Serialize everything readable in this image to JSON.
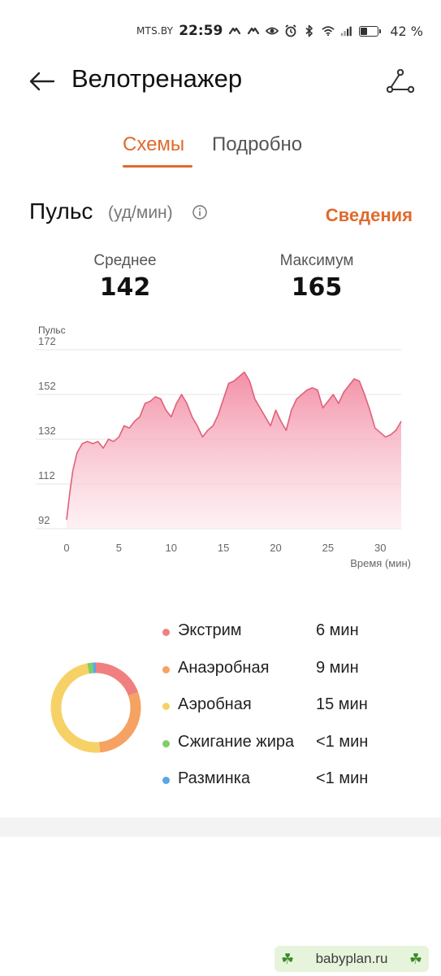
{
  "status_bar": {
    "carrier": "MTS.BY",
    "time": "22:59",
    "battery_percent_label": "42 %",
    "battery_level": 0.42,
    "icons": [
      "vibrate-icon",
      "vibrate-icon",
      "eye-icon",
      "alarm-icon",
      "bluetooth-icon",
      "wifi-icon",
      "signal-icon",
      "battery-icon"
    ]
  },
  "header": {
    "title": "Велотренажер",
    "back_icon": "arrow-left-icon",
    "route_icon": "route-icon"
  },
  "tabs": [
    {
      "label": "Схемы",
      "active": true
    },
    {
      "label": "Подробно",
      "active": false
    }
  ],
  "pulse": {
    "title": "Пульс",
    "unit": "(уд/мин)",
    "details_label": "Сведения",
    "average_label": "Среднее",
    "average_value": "142",
    "max_label": "Максимум",
    "max_value": "165"
  },
  "colors": {
    "accent": "#e06a2b",
    "line": "#e0607a",
    "extreme": "#f08080",
    "anaerobic": "#f5a262",
    "aerobic": "#f6d266",
    "fat_burn": "#7fce66",
    "warmup": "#5aa6e8"
  },
  "chart_data": {
    "type": "area",
    "y_axis_title": "Пульс",
    "x_axis_title": "Время (мин)",
    "y_ticks": [
      "172",
      "152",
      "132",
      "112",
      "92"
    ],
    "x_ticks": [
      "0",
      "5",
      "10",
      "15",
      "20",
      "25",
      "30"
    ],
    "ylim": [
      92,
      172
    ],
    "xlim": [
      0,
      32
    ],
    "grid": true,
    "x": [
      0,
      0.3,
      0.6,
      1,
      1.5,
      2,
      2.5,
      3,
      3.5,
      4,
      4.5,
      5,
      5.5,
      6,
      6.5,
      7,
      7.5,
      8,
      8.5,
      9,
      9.5,
      10,
      10.5,
      11,
      11.5,
      12,
      12.5,
      13,
      13.5,
      14,
      14.5,
      15,
      15.5,
      16,
      16.5,
      17,
      17.5,
      18,
      18.5,
      19,
      19.5,
      20,
      20.5,
      21,
      21.5,
      22,
      22.5,
      23,
      23.5,
      24,
      24.5,
      25,
      25.5,
      26,
      26.5,
      27,
      27.5,
      28,
      28.5,
      29,
      29.5,
      30,
      30.5,
      31,
      31.5,
      32
    ],
    "y": [
      96,
      108,
      118,
      126,
      130,
      131,
      130,
      131,
      128,
      132,
      131,
      133,
      138,
      137,
      140,
      142,
      148,
      149,
      151,
      150,
      145,
      142,
      148,
      152,
      148,
      142,
      138,
      133,
      136,
      138,
      143,
      150,
      157,
      158,
      160,
      162,
      158,
      150,
      146,
      142,
      138,
      145,
      140,
      136,
      145,
      150,
      152,
      154,
      155,
      154,
      146,
      149,
      152,
      148,
      153,
      156,
      159,
      158,
      152,
      145,
      137,
      135,
      133,
      134,
      136,
      140
    ]
  },
  "zones": [
    {
      "name": "Экстрим",
      "time": "6 мин",
      "minutes": 6,
      "color": "#f08080"
    },
    {
      "name": "Анаэробная",
      "time": "9 мин",
      "minutes": 9,
      "color": "#f5a262"
    },
    {
      "name": "Аэробная",
      "time": "15 мин",
      "minutes": 15,
      "color": "#f6d266"
    },
    {
      "name": "Сжигание жира",
      "time": "<1 мин",
      "minutes": 0.6,
      "color": "#7fce66"
    },
    {
      "name": "Разминка",
      "time": "<1 мин",
      "minutes": 0.4,
      "color": "#5aa6e8"
    }
  ],
  "watermark": "babyplan.ru"
}
